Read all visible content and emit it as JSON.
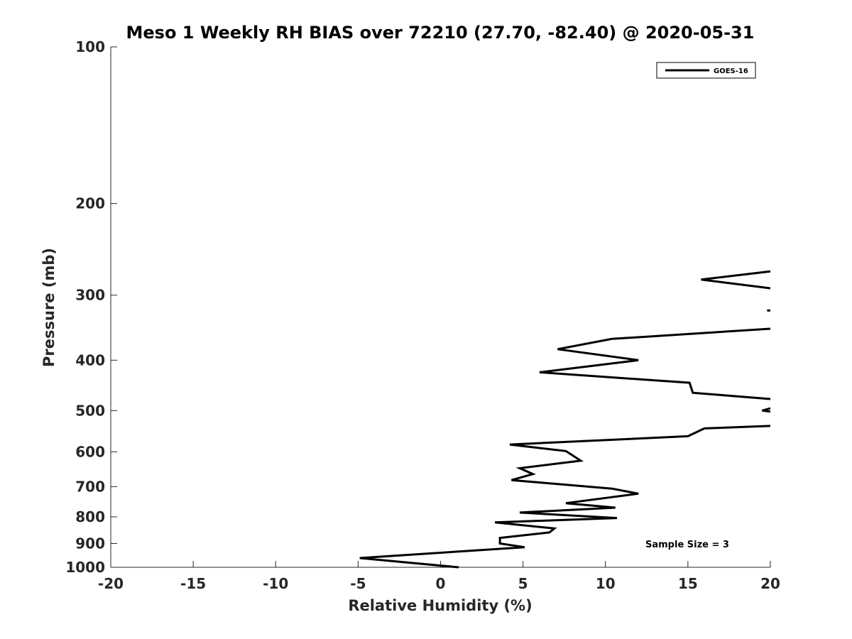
{
  "chart_data": {
    "type": "line",
    "title": "Meso 1 Weekly RH BIAS over 72210 (27.70, -82.40) @ 2020-05-31",
    "xlabel": "Relative Humidity (%)",
    "ylabel": "Pressure (mb)",
    "xlim": [
      -20,
      20
    ],
    "ylim": [
      1000,
      100
    ],
    "y_scale": "log",
    "x_ticks": [
      -20,
      -15,
      -10,
      -5,
      0,
      5,
      10,
      15,
      20
    ],
    "y_ticks": [
      100,
      200,
      300,
      400,
      500,
      600,
      700,
      800,
      900,
      1000
    ],
    "grid": false,
    "legend": "top-right",
    "annotation": "Sample Size = 3",
    "line_color": "#000000",
    "series": [
      {
        "name": "GOES-16",
        "segments": [
          [
            [
              20.0,
              270
            ],
            [
              15.8,
              280
            ],
            [
              20.0,
              291
            ]
          ],
          [
            [
              20.0,
              321
            ],
            [
              19.8,
              321
            ]
          ],
          [
            [
              20.0,
              348
            ],
            [
              10.4,
              364
            ],
            [
              7.1,
              381
            ],
            [
              12.0,
              400
            ],
            [
              6.0,
              422
            ],
            [
              15.1,
              442
            ],
            [
              15.3,
              462
            ],
            [
              20.0,
              475
            ]
          ],
          [
            [
              20.0,
              495
            ],
            [
              19.5,
              500
            ],
            [
              20.0,
              502
            ]
          ],
          [
            [
              20.0,
              535
            ],
            [
              16.0,
              541
            ],
            [
              15.0,
              560
            ],
            [
              4.2,
              581
            ],
            [
              7.6,
              598
            ],
            [
              8.5,
              624
            ],
            [
              4.8,
              645
            ],
            [
              5.6,
              662
            ],
            [
              4.3,
              680
            ],
            [
              10.4,
              706
            ],
            [
              12.0,
              722
            ],
            [
              7.6,
              753
            ],
            [
              10.6,
              768
            ],
            [
              4.8,
              785
            ],
            [
              10.7,
              804
            ],
            [
              3.3,
              820
            ],
            [
              6.9,
              842
            ],
            [
              6.6,
              857
            ],
            [
              3.6,
              878
            ],
            [
              3.6,
              900
            ],
            [
              5.1,
              915
            ],
            [
              -4.9,
              960
            ],
            [
              1.1,
              1000
            ]
          ]
        ]
      }
    ]
  }
}
